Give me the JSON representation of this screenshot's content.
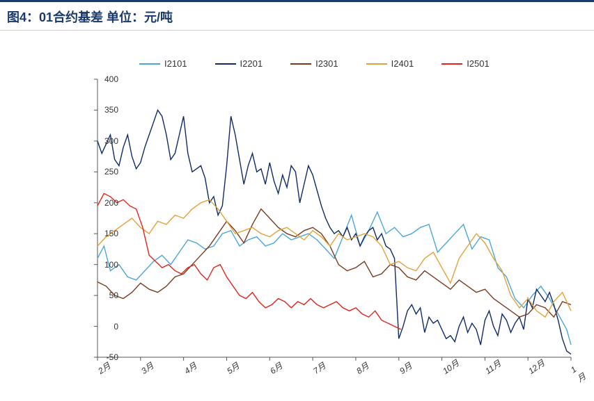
{
  "title": "图4：01合约基差  单位：元/吨",
  "chart": {
    "type": "line",
    "background_color": "#ffffff",
    "title_color": "#1a3a6b",
    "title_fontsize": 18,
    "label_fontsize": 12,
    "axis_color": "#555555",
    "ylim": [
      -50,
      400
    ],
    "ytick_step": 50,
    "yticks": [
      -50,
      0,
      50,
      100,
      150,
      200,
      250,
      300,
      350,
      400
    ],
    "x_categories": [
      "2月",
      "3月",
      "4月",
      "5月",
      "6月",
      "7月",
      "8月",
      "9月",
      "10月",
      "11月",
      "12月",
      "1月"
    ],
    "legend": [
      {
        "label": "I2101",
        "color": "#4aa6d8"
      },
      {
        "label": "I2201",
        "color": "#102a66"
      },
      {
        "label": "I2301",
        "color": "#7a3a1f"
      },
      {
        "label": "I2401",
        "color": "#e3a13a"
      },
      {
        "label": "I2501",
        "color": "#e2231a"
      }
    ],
    "line_width": 1.4,
    "series": {
      "I2101": {
        "color": "#4aa6d8",
        "x": [
          0,
          0.15,
          0.3,
          0.5,
          0.7,
          0.9,
          1.1,
          1.3,
          1.5,
          1.7,
          1.9,
          2.1,
          2.3,
          2.5,
          2.7,
          2.9,
          3.1,
          3.3,
          3.5,
          3.7,
          3.9,
          4.1,
          4.3,
          4.5,
          4.7,
          4.9,
          5.1,
          5.3,
          5.5,
          5.7,
          5.9,
          6.1,
          6.3,
          6.5,
          6.7,
          6.9,
          7.1,
          7.3,
          7.5,
          7.7,
          7.9,
          8.1,
          8.3,
          8.5,
          8.7,
          8.9,
          9.1,
          9.3,
          9.5,
          9.7,
          9.9,
          10.1,
          10.3,
          10.5,
          10.7,
          10.9,
          11
        ],
        "y": [
          110,
          130,
          90,
          100,
          80,
          75,
          90,
          105,
          115,
          100,
          120,
          140,
          135,
          125,
          130,
          150,
          155,
          130,
          140,
          145,
          130,
          135,
          150,
          140,
          145,
          150,
          140,
          125,
          110,
          145,
          180,
          130,
          155,
          185,
          150,
          160,
          145,
          150,
          160,
          165,
          120,
          135,
          150,
          165,
          125,
          145,
          140,
          95,
          80,
          45,
          30,
          50,
          65,
          45,
          20,
          -5,
          -30
        ]
      },
      "I2201": {
        "color": "#102a66",
        "x": [
          0,
          0.1,
          0.2,
          0.3,
          0.4,
          0.5,
          0.6,
          0.7,
          0.8,
          0.9,
          1.0,
          1.1,
          1.2,
          1.3,
          1.4,
          1.5,
          1.6,
          1.7,
          1.8,
          1.9,
          2.0,
          2.1,
          2.2,
          2.3,
          2.4,
          2.5,
          2.6,
          2.7,
          2.8,
          2.9,
          3.0,
          3.1,
          3.2,
          3.3,
          3.4,
          3.5,
          3.6,
          3.7,
          3.8,
          3.9,
          4.0,
          4.1,
          4.2,
          4.3,
          4.4,
          4.5,
          4.6,
          4.7,
          4.8,
          4.9,
          5.0,
          5.1,
          5.2,
          5.3,
          5.4,
          5.5,
          5.6,
          5.7,
          5.8,
          5.9,
          6.0,
          6.1,
          6.2,
          6.3,
          6.4,
          6.5,
          6.6,
          6.7,
          6.8,
          6.9,
          7.0,
          7.1,
          7.2,
          7.3,
          7.4,
          7.5,
          7.6,
          7.7,
          7.8,
          7.9,
          8.0,
          8.1,
          8.2,
          8.3,
          8.4,
          8.5,
          8.6,
          8.7,
          8.8,
          8.9,
          9.0,
          9.1,
          9.2,
          9.3,
          9.4,
          9.5,
          9.6,
          9.7,
          9.8,
          9.9,
          10.0,
          10.1,
          10.2,
          10.3,
          10.4,
          10.5,
          10.6,
          10.7,
          10.8,
          10.9,
          11.0
        ],
        "y": [
          300,
          280,
          295,
          310,
          270,
          260,
          290,
          310,
          275,
          255,
          265,
          290,
          310,
          330,
          350,
          340,
          310,
          270,
          280,
          310,
          340,
          280,
          250,
          255,
          260,
          240,
          200,
          210,
          180,
          195,
          260,
          340,
          310,
          270,
          230,
          260,
          280,
          250,
          255,
          230,
          265,
          235,
          215,
          245,
          225,
          260,
          250,
          200,
          230,
          260,
          245,
          220,
          195,
          175,
          160,
          150,
          155,
          145,
          160,
          140,
          150,
          130,
          145,
          155,
          160,
          140,
          150,
          130,
          125,
          110,
          -20,
          0,
          25,
          35,
          20,
          30,
          -10,
          15,
          5,
          10,
          -5,
          -20,
          -15,
          -25,
          0,
          15,
          -10,
          5,
          -5,
          -30,
          10,
          25,
          0,
          -15,
          20,
          10,
          -10,
          5,
          15,
          -5,
          45,
          30,
          60,
          50,
          40,
          55,
          35,
          10,
          -20,
          -40,
          -45
        ]
      },
      "I2301": {
        "color": "#7a3a1f",
        "x": [
          0,
          0.2,
          0.4,
          0.6,
          0.8,
          1.0,
          1.2,
          1.4,
          1.6,
          1.8,
          2.0,
          2.2,
          2.4,
          2.6,
          2.8,
          3.0,
          3.2,
          3.4,
          3.6,
          3.8,
          4.0,
          4.2,
          4.4,
          4.6,
          4.8,
          5.0,
          5.2,
          5.4,
          5.6,
          5.8,
          6.0,
          6.2,
          6.4,
          6.6,
          6.8,
          7.0,
          7.2,
          7.4,
          7.6,
          7.8,
          8.0,
          8.2,
          8.4,
          8.6,
          8.8,
          9.0,
          9.2,
          9.4,
          9.6,
          9.8,
          10.0,
          10.2,
          10.4,
          10.6,
          10.8,
          11.0
        ],
        "y": [
          72,
          65,
          50,
          45,
          55,
          70,
          60,
          55,
          65,
          80,
          85,
          100,
          115,
          130,
          150,
          170,
          155,
          135,
          165,
          190,
          175,
          160,
          150,
          145,
          155,
          160,
          150,
          130,
          100,
          90,
          95,
          105,
          80,
          85,
          100,
          95,
          80,
          75,
          90,
          80,
          70,
          60,
          75,
          65,
          55,
          60,
          45,
          35,
          25,
          15,
          20,
          35,
          30,
          15,
          40,
          35
        ]
      },
      "I2401": {
        "color": "#e3a13a",
        "x": [
          0,
          0.2,
          0.4,
          0.6,
          0.8,
          1.0,
          1.2,
          1.4,
          1.6,
          1.8,
          2.0,
          2.2,
          2.4,
          2.6,
          2.8,
          3.0,
          3.2,
          3.4,
          3.6,
          3.8,
          4.0,
          4.2,
          4.4,
          4.6,
          4.8,
          5.0,
          5.2,
          5.4,
          5.6,
          5.8,
          6.0,
          6.2,
          6.4,
          6.6,
          6.8,
          7.0,
          7.2,
          7.4,
          7.6,
          7.8,
          8.0,
          8.2,
          8.4,
          8.6,
          8.8,
          9.0,
          9.2,
          9.4,
          9.6,
          9.8,
          10.0,
          10.2,
          10.4,
          10.6,
          10.8,
          11.0
        ],
        "y": [
          130,
          145,
          155,
          165,
          175,
          160,
          150,
          170,
          165,
          180,
          175,
          190,
          200,
          205,
          190,
          170,
          150,
          155,
          160,
          150,
          145,
          155,
          160,
          150,
          140,
          155,
          145,
          130,
          150,
          140,
          145,
          150,
          145,
          130,
          100,
          105,
          95,
          90,
          110,
          120,
          95,
          70,
          110,
          130,
          150,
          135,
          110,
          90,
          50,
          30,
          45,
          25,
          15,
          40,
          55,
          25
        ]
      },
      "I2501": {
        "color": "#e2231a",
        "x": [
          0,
          0.15,
          0.3,
          0.45,
          0.6,
          0.75,
          0.9,
          1.05,
          1.2,
          1.35,
          1.5,
          1.65,
          1.8,
          1.95,
          2.1,
          2.25,
          2.4,
          2.55,
          2.7,
          2.85,
          3.0,
          3.15,
          3.3,
          3.45,
          3.6,
          3.75,
          3.9,
          4.05,
          4.2,
          4.35,
          4.5,
          4.65,
          4.8,
          4.95,
          5.1,
          5.25,
          5.4,
          5.55,
          5.7,
          5.85,
          6.0,
          6.15,
          6.3,
          6.45,
          6.6,
          6.75,
          6.9,
          7.05
        ],
        "y": [
          195,
          215,
          210,
          200,
          205,
          195,
          190,
          160,
          115,
          105,
          95,
          100,
          90,
          85,
          95,
          100,
          85,
          75,
          95,
          100,
          80,
          65,
          50,
          45,
          55,
          40,
          30,
          35,
          45,
          40,
          30,
          40,
          35,
          45,
          35,
          30,
          35,
          40,
          30,
          25,
          30,
          20,
          15,
          25,
          10,
          5,
          0,
          -5
        ]
      }
    }
  }
}
